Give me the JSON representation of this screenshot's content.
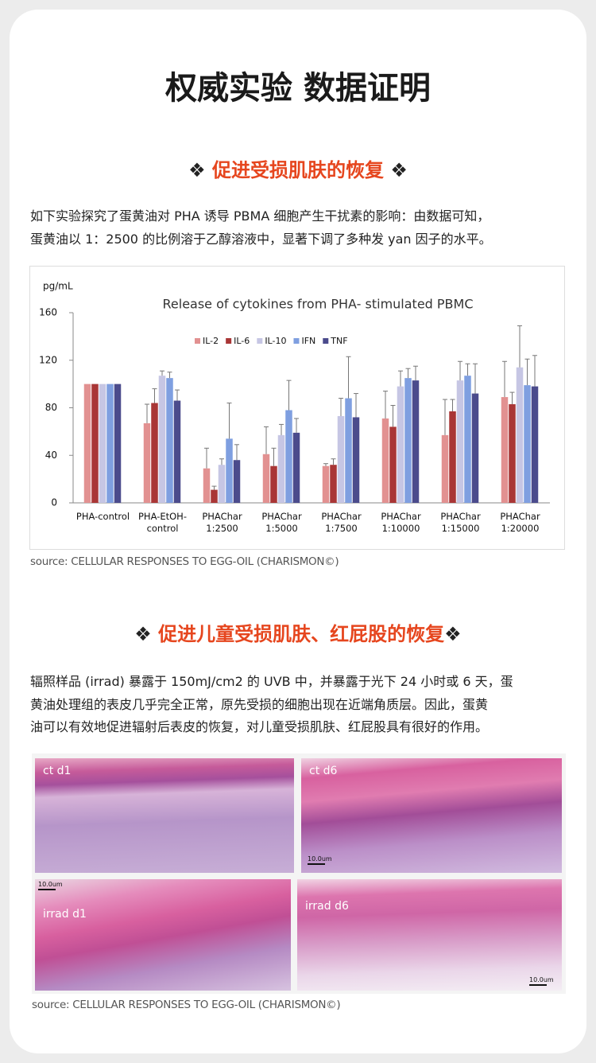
{
  "title": "权威实验 数据证明",
  "section1": {
    "ornament": "❖",
    "heading": "促进受损肌肤的恢复",
    "lines": [
      "如下实验探究了蛋黄油对 PHA 诱导 PBMA 细胞产生干扰素的影响：由数据可知，",
      "蛋黄油以 1：2500 的比例溶于乙醇溶液中，显著下调了多种发 yan 因子的水平。"
    ],
    "source": "source: CELLULAR RESPONSES TO EGG-OIL (CHARISMON©)"
  },
  "chart_data": {
    "type": "bar",
    "title": "Release of cytokines from PHA- stimulated PBMC",
    "y_label": "pg/mL",
    "categories": [
      "PHA-control",
      "PHA-EtOH-\ncontrol",
      "PHAChar\n1:2500",
      "PHAChar\n1:5000",
      "PHAChar\n1:7500",
      "PHAChar\n1:10000",
      "PHAChar\n1:15000",
      "PHAChar\n1:20000"
    ],
    "series": [
      {
        "name": "IL-2",
        "color": "#e29191",
        "values": [
          100,
          67,
          29,
          41,
          31,
          71,
          57,
          89
        ],
        "errors": [
          0,
          16,
          17,
          23,
          2,
          23,
          30,
          30
        ]
      },
      {
        "name": "IL-6",
        "color": "#a93636",
        "values": [
          100,
          84,
          11,
          31,
          32,
          64,
          77,
          83
        ],
        "errors": [
          0,
          12,
          3,
          15,
          5,
          18,
          10,
          10
        ]
      },
      {
        "name": "IL-10",
        "color": "#c6c6e4",
        "values": [
          100,
          107,
          32,
          57,
          73,
          98,
          103,
          114
        ],
        "errors": [
          0,
          4,
          5,
          9,
          15,
          13,
          16,
          35
        ]
      },
      {
        "name": "IFN",
        "color": "#7f9fe0",
        "values": [
          100,
          105,
          54,
          78,
          88,
          105,
          107,
          99
        ],
        "errors": [
          0,
          5,
          30,
          25,
          35,
          8,
          10,
          22
        ]
      },
      {
        "name": "TNF",
        "color": "#4b4b8c",
        "values": [
          100,
          86,
          36,
          59,
          72,
          103,
          92,
          98
        ],
        "errors": [
          0,
          9,
          13,
          12,
          20,
          12,
          25,
          26
        ]
      }
    ],
    "ylim": [
      0,
      160
    ],
    "yticks": [
      0,
      40,
      80,
      120,
      160
    ],
    "grid": false
  },
  "section2": {
    "ornament": "❖",
    "heading": "促进儿童受损肌肤、红屁股的恢复",
    "lines": [
      "辐照样品 (irrad) 暴露于 150mJ/cm2 的 UVB 中，并暴露于光下 24 小时或 6 天，蛋",
      "黄油处理组的表皮几乎完全正常，原先受损的细胞出现在近端角质层。因此，蛋黄",
      "油可以有效地促进辐射后表皮的恢复，对儿童受损肌肤、红屁股具有很好的作用。"
    ],
    "panels": [
      {
        "label": "ct d1"
      },
      {
        "label": "ct d6",
        "scale": "10.0um"
      },
      {
        "label": "irrad  d1",
        "scale": "10.0um"
      },
      {
        "label": "irrad d6",
        "scale": "10.0um"
      }
    ],
    "source": "source: CELLULAR RESPONSES TO EGG-OIL (CHARISMON©)"
  }
}
